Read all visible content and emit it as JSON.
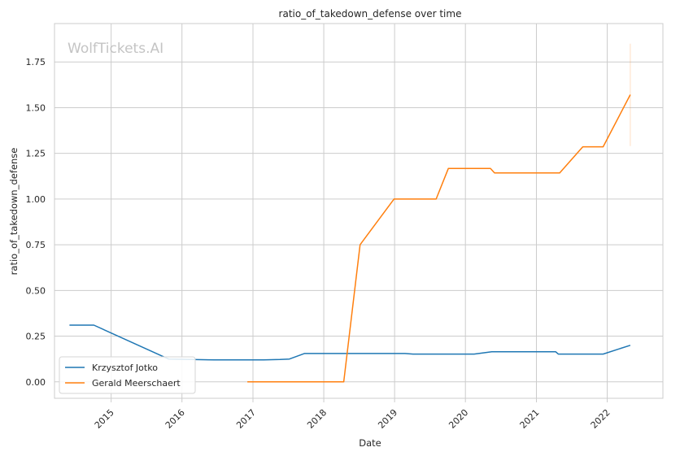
{
  "chart_data": {
    "type": "line",
    "title": "ratio_of_takedown_defense over time",
    "xlabel": "Date",
    "ylabel": "ratio_of_takedown_defense",
    "watermark": "WolfTickets.AI",
    "xlim": [
      "2014-03-15",
      "2022-10-15"
    ],
    "ylim": [
      -0.09,
      1.96
    ],
    "x_ticks": [
      "2015",
      "2016",
      "2017",
      "2018",
      "2019",
      "2020",
      "2021",
      "2022"
    ],
    "y_ticks": [
      "0.00",
      "0.25",
      "0.50",
      "0.75",
      "1.00",
      "1.25",
      "1.50",
      "1.75"
    ],
    "grid": true,
    "legend_position": "lower-left",
    "series": [
      {
        "name": "Krzysztof Jotko",
        "color": "#1f77b4",
        "x": [
          "2014-05-31",
          "2014-10-04",
          "2015-10-24",
          "2016-06-18",
          "2016-12-03",
          "2017-02-25",
          "2017-05-20",
          "2017-07-08",
          "2017-09-23",
          "2019-02-23",
          "2019-04-06",
          "2020-02-15",
          "2020-05-16",
          "2021-04-10",
          "2021-04-24",
          "2021-06-19",
          "2021-12-11",
          "2022-04-30"
        ],
        "y": [
          0.31,
          0.31,
          0.125,
          0.12,
          0.12,
          0.12,
          0.122,
          0.125,
          0.155,
          0.155,
          0.152,
          0.152,
          0.165,
          0.165,
          0.152,
          0.152,
          0.152,
          0.2
        ]
      },
      {
        "name": "Gerald Meerschaert",
        "color": "#ff7f0e",
        "x": [
          "2016-12-03",
          "2017-12-30",
          "2018-04-14",
          "2018-07-07",
          "2018-12-29",
          "2019-08-03",
          "2019-10-05",
          "2020-05-09",
          "2020-05-30",
          "2020-12-19",
          "2021-05-01",
          "2021-08-28",
          "2021-12-11",
          "2022-04-30"
        ],
        "y": [
          0.0,
          0.0,
          0.0,
          0.75,
          1.0,
          1.0,
          1.167,
          1.167,
          1.143,
          1.143,
          1.143,
          1.286,
          1.286,
          1.571
        ]
      }
    ],
    "error_band": {
      "series": "Gerald Meerschaert",
      "x": "2022-04-30",
      "low": 1.29,
      "high": 1.85
    }
  }
}
